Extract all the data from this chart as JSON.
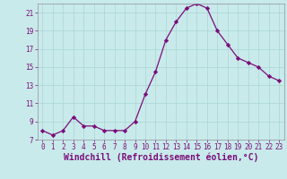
{
  "x": [
    0,
    1,
    2,
    3,
    4,
    5,
    6,
    7,
    8,
    9,
    10,
    11,
    12,
    13,
    14,
    15,
    16,
    17,
    18,
    19,
    20,
    21,
    22,
    23
  ],
  "y": [
    8.0,
    7.5,
    8.0,
    9.5,
    8.5,
    8.5,
    8.0,
    8.0,
    8.0,
    9.0,
    12.0,
    14.5,
    18.0,
    20.0,
    21.5,
    22.0,
    21.5,
    19.0,
    17.5,
    16.0,
    15.5,
    15.0,
    14.0,
    13.5
  ],
  "line_color": "#7b0d7b",
  "marker": "D",
  "marker_size": 2.2,
  "bg_color": "#c8eaea",
  "grid_color": "#b0d8d8",
  "xlabel": "Windchill (Refroidissement éolien,°C)",
  "xlim": [
    -0.5,
    23.5
  ],
  "ylim": [
    7,
    22
  ],
  "yticks": [
    7,
    9,
    11,
    13,
    15,
    17,
    19,
    21
  ],
  "xticks": [
    0,
    1,
    2,
    3,
    4,
    5,
    6,
    7,
    8,
    9,
    10,
    11,
    12,
    13,
    14,
    15,
    16,
    17,
    18,
    19,
    20,
    21,
    22,
    23
  ],
  "tick_color": "#7b0d7b",
  "tick_fontsize": 5.5,
  "xlabel_fontsize": 7.0,
  "label_color": "#7b0d7b",
  "spine_color": "#9090a0",
  "linewidth": 0.9
}
